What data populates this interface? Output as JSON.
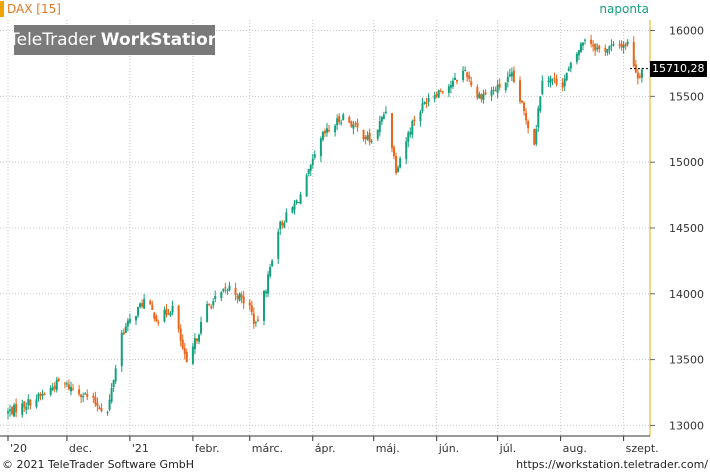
{
  "header": {
    "instrument": "DAX [15]",
    "period": "naponta",
    "logo_text_a": "TeleTrader",
    "logo_text_b": "WorkStation"
  },
  "price_label": "15710,28",
  "footer": {
    "copyright": "© 2021 TeleTrader Software GmbH",
    "url": "https://workstation.teletrader.com/"
  },
  "colors": {
    "up": "#13a07e",
    "down": "#e8651a",
    "grid": "#c8c8c8",
    "accent": "#f0a500"
  },
  "chart_data": {
    "type": "candlestick",
    "title": "",
    "xlabel": "",
    "ylabel": "",
    "ylim": [
      12950,
      16080
    ],
    "grid": true,
    "y_ticks": [
      13000,
      13500,
      14000,
      14500,
      15000,
      15500,
      16000
    ],
    "y_tick_labels": [
      "13000",
      "13500",
      "14000",
      "14500",
      "15000",
      "15500",
      "16000"
    ],
    "x_ticks": [
      {
        "date": "2021-01-01",
        "label": "'21"
      },
      {
        "date": "2021-02-01",
        "label": "febr."
      },
      {
        "date": "2021-03-01",
        "label": "márc."
      },
      {
        "date": "2021-04-01",
        "label": "ápr."
      },
      {
        "date": "2021-05-01",
        "label": "máj."
      },
      {
        "date": "2021-06-01",
        "label": "jún."
      },
      {
        "date": "2021-07-01",
        "label": "júl."
      },
      {
        "date": "2021-08-01",
        "label": "aug."
      },
      {
        "date": "2021-09-01",
        "label": "szept."
      }
    ],
    "x_ticks_partial": [
      {
        "date": "2020-11-02",
        "label": "'20"
      },
      {
        "date": "2020-12-01",
        "label": "dec."
      }
    ],
    "last_price": 15710.28,
    "anchors": [
      {
        "date": "2020-11-02",
        "close": 13100
      },
      {
        "date": "2020-11-09",
        "close": 13150
      },
      {
        "date": "2020-11-20",
        "close": 13240
      },
      {
        "date": "2020-11-27",
        "close": 13330
      },
      {
        "date": "2020-12-08",
        "close": 13250
      },
      {
        "date": "2020-12-21",
        "close": 13100
      },
      {
        "date": "2020-12-28",
        "close": 13700
      },
      {
        "date": "2021-01-08",
        "close": 13950
      },
      {
        "date": "2021-01-15",
        "close": 13800
      },
      {
        "date": "2021-01-22",
        "close": 13900
      },
      {
        "date": "2021-01-29",
        "close": 13450
      },
      {
        "date": "2021-02-08",
        "close": 13900
      },
      {
        "date": "2021-02-19",
        "close": 14050
      },
      {
        "date": "2021-03-01",
        "close": 13900
      },
      {
        "date": "2021-03-04",
        "close": 13750
      },
      {
        "date": "2021-03-09",
        "close": 14050
      },
      {
        "date": "2021-03-15",
        "close": 14500
      },
      {
        "date": "2021-03-22",
        "close": 14650
      },
      {
        "date": "2021-03-26",
        "close": 14750
      },
      {
        "date": "2021-04-06",
        "close": 15200
      },
      {
        "date": "2021-04-16",
        "close": 15350
      },
      {
        "date": "2021-04-30",
        "close": 15150
      },
      {
        "date": "2021-05-07",
        "close": 15400
      },
      {
        "date": "2021-05-12",
        "close": 14950
      },
      {
        "date": "2021-05-20",
        "close": 15300
      },
      {
        "date": "2021-05-28",
        "close": 15500
      },
      {
        "date": "2021-06-09",
        "close": 15600
      },
      {
        "date": "2021-06-15",
        "close": 15700
      },
      {
        "date": "2021-06-21",
        "close": 15500
      },
      {
        "date": "2021-06-30",
        "close": 15550
      },
      {
        "date": "2021-07-08",
        "close": 15650
      },
      {
        "date": "2021-07-19",
        "close": 15150
      },
      {
        "date": "2021-07-23",
        "close": 15650
      },
      {
        "date": "2021-08-02",
        "close": 15600
      },
      {
        "date": "2021-08-13",
        "close": 15950
      },
      {
        "date": "2021-08-20",
        "close": 15850
      },
      {
        "date": "2021-09-03",
        "close": 15900
      },
      {
        "date": "2021-09-08",
        "close": 15650
      },
      {
        "date": "2021-09-10",
        "close": 15710
      }
    ]
  }
}
